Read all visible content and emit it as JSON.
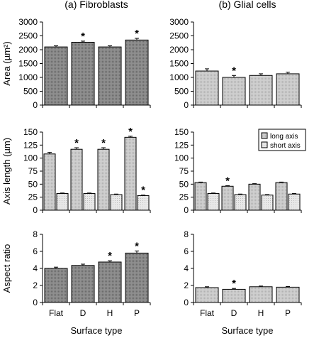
{
  "chart_data": [
    {
      "id": "a-area",
      "type": "bar",
      "title": "(a) Fibroblasts",
      "ylabel": "Area (µm²)",
      "ylim": [
        0,
        3000
      ],
      "yticks": [
        0,
        500,
        1000,
        1500,
        2000,
        2500,
        3000
      ],
      "categories": [
        "Flat",
        "D",
        "H",
        "P"
      ],
      "series": [
        {
          "values": [
            2100,
            2270,
            2100,
            2350
          ],
          "errors": [
            40,
            40,
            40,
            60
          ],
          "star": [
            false,
            true,
            false,
            true
          ],
          "color": "#8f8f8f"
        }
      ]
    },
    {
      "id": "b-area",
      "type": "bar",
      "title": "(b) Glial cells",
      "ylabel": "",
      "ylim": [
        0,
        3000
      ],
      "yticks": [
        0,
        500,
        1000,
        1500,
        2000,
        2500,
        3000
      ],
      "categories": [
        "Flat",
        "D",
        "H",
        "P"
      ],
      "series": [
        {
          "values": [
            1230,
            1000,
            1070,
            1130
          ],
          "errors": [
            80,
            70,
            60,
            60
          ],
          "star": [
            false,
            true,
            false,
            false
          ],
          "color": "#cfcfcf"
        }
      ]
    },
    {
      "id": "a-axis",
      "type": "bar",
      "ylabel": "Axis length (µm)",
      "ylim": [
        0,
        150
      ],
      "yticks": [
        0,
        25,
        50,
        75,
        100,
        125,
        150
      ],
      "categories": [
        "Flat",
        "D",
        "H",
        "P"
      ],
      "series": [
        {
          "name": "long axis",
          "values": [
            108,
            117,
            117,
            140
          ],
          "errors": [
            3,
            3,
            3,
            2
          ],
          "star": [
            false,
            true,
            true,
            true
          ],
          "color": "#cfcfcf"
        },
        {
          "name": "short axis",
          "values": [
            32,
            32,
            30,
            28
          ],
          "errors": [
            1,
            1,
            1,
            1
          ],
          "star": [
            false,
            false,
            false,
            true
          ],
          "color": "#e8e8e8"
        }
      ]
    },
    {
      "id": "b-axis",
      "type": "bar",
      "ylabel": "",
      "ylim": [
        0,
        150
      ],
      "yticks": [
        0,
        25,
        50,
        75,
        100,
        125,
        150
      ],
      "categories": [
        "Flat",
        "D",
        "H",
        "P"
      ],
      "legend": {
        "placement": "top-right",
        "entries": [
          "long axis",
          "short axis"
        ]
      },
      "series": [
        {
          "name": "long axis",
          "values": [
            53,
            46,
            50,
            53
          ],
          "errors": [
            1,
            1,
            1,
            1
          ],
          "star": [
            false,
            true,
            false,
            false
          ],
          "color": "#cfcfcf"
        },
        {
          "name": "short axis",
          "values": [
            32,
            30,
            29,
            31
          ],
          "errors": [
            1,
            1,
            1,
            1
          ],
          "star": [
            false,
            false,
            false,
            false
          ],
          "color": "#e8e8e8"
        }
      ]
    },
    {
      "id": "a-ratio",
      "type": "bar",
      "ylabel": "Aspect ratio",
      "xlabel": "Surface type",
      "ylim": [
        0,
        8
      ],
      "yticks": [
        0,
        2,
        4,
        6,
        8
      ],
      "categories": [
        "Flat",
        "D",
        "H",
        "P"
      ],
      "series": [
        {
          "values": [
            4.0,
            4.35,
            4.75,
            5.8
          ],
          "errors": [
            0.15,
            0.15,
            0.15,
            0.25
          ],
          "star": [
            false,
            false,
            true,
            true
          ],
          "color": "#8f8f8f"
        }
      ]
    },
    {
      "id": "b-ratio",
      "type": "bar",
      "ylabel": "",
      "xlabel": "Surface type",
      "ylim": [
        0,
        8
      ],
      "yticks": [
        0,
        2,
        4,
        6,
        8
      ],
      "categories": [
        "Flat",
        "D",
        "H",
        "P"
      ],
      "series": [
        {
          "values": [
            1.75,
            1.55,
            1.85,
            1.8
          ],
          "errors": [
            0.1,
            0.1,
            0.08,
            0.08
          ],
          "star": [
            false,
            true,
            false,
            false
          ],
          "color": "#cfcfcf"
        }
      ]
    }
  ],
  "marks": {
    "significance": "*"
  }
}
